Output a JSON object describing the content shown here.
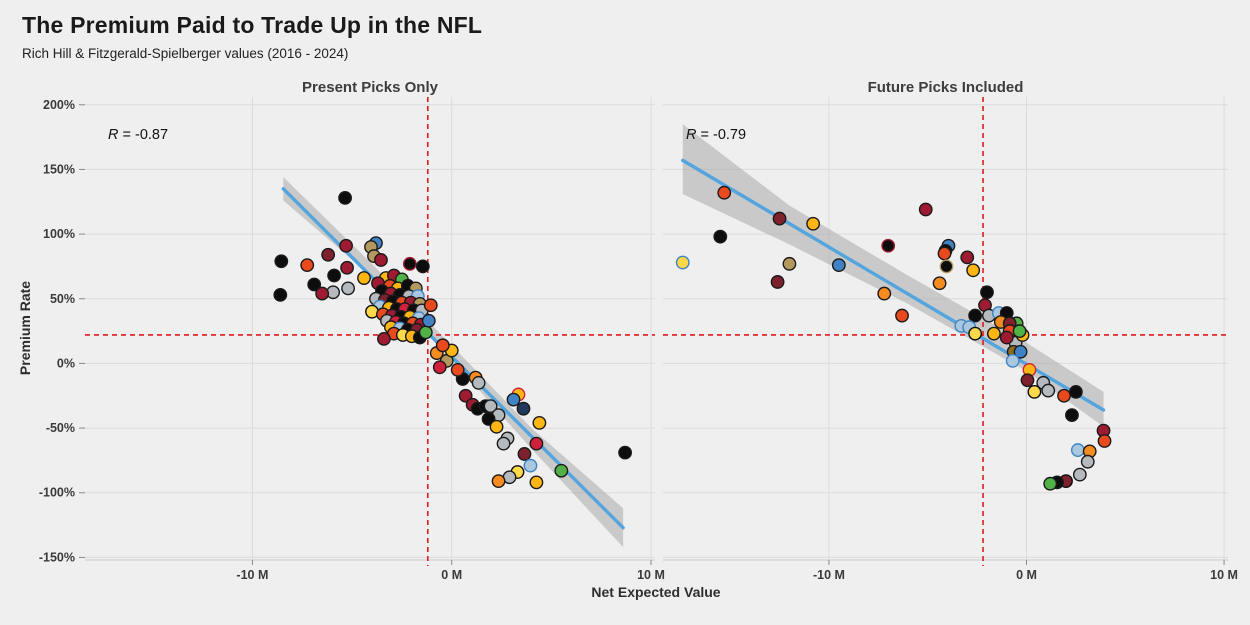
{
  "header": {
    "title": "The Premium Paid to Trade Up in the NFL",
    "subtitle": "Rich Hill & Fitzgerald-Spielberger values (2016 - 2024)"
  },
  "colors": {
    "background": "#efeff0",
    "grid": "#dbdbdc",
    "axis_line": "#c9c9ca",
    "axis_tick": "#8a8a8a",
    "tick_text": "#3a3a3a",
    "title_text": "#1a1a1a",
    "trend": "#54a4de",
    "ci": "#a3a3a3",
    "refline": "#e3191e",
    "point_stroke": "#1a1a1a",
    "palette": {
      "bk": "#0d0d0d",
      "cr": "#9e1b32",
      "rd": "#d0213a",
      "dr": "#7e212e",
      "or": "#e8491d",
      "oa": "#f68b20",
      "gd": "#ffb612",
      "yl": "#ffd94a",
      "gy": "#b5babf",
      "lb": "#a9c8de",
      "bl": "#3f83c4",
      "tn": "#b3995d",
      "ol": "#8c6d1f",
      "gn": "#50b146",
      "nv": "#23395b"
    }
  },
  "chart_data": {
    "type": "scatter",
    "title": "The Premium Paid to Trade Up in the NFL",
    "subtitle": "Rich Hill & Fitzgerald-Spielberger values (2016 - 2024)",
    "xlabel": "Net Expected Value",
    "ylabel": "Premium Rate",
    "xlim": [
      -18.4,
      10.2
    ],
    "ylim": [
      -152,
      206
    ],
    "x_unit": "M",
    "y_unit": "%",
    "grid": true,
    "legend": null,
    "x_ticks": [
      {
        "v": -10,
        "label": "-10 M"
      },
      {
        "v": 0,
        "label": "0 M"
      },
      {
        "v": 10,
        "label": "10 M"
      }
    ],
    "y_ticks": [
      {
        "v": 200,
        "label": "200%"
      },
      {
        "v": 150,
        "label": "150%"
      },
      {
        "v": 100,
        "label": "100%"
      },
      {
        "v": 50,
        "label": "50%"
      },
      {
        "v": 0,
        "label": "0%"
      },
      {
        "v": -50,
        "label": "-50%"
      },
      {
        "v": -100,
        "label": "-100%"
      },
      {
        "v": -150,
        "label": "-150%"
      }
    ],
    "ref_hline": 22,
    "panels": [
      {
        "title": "Present Picks Only",
        "r_var": "R",
        "r_value": " = -0.87",
        "ref_vline": -1.2,
        "trend": [
          [
            -8.45,
            135
          ],
          [
            8.6,
            -127
          ]
        ],
        "ci_upper": [
          [
            -8.45,
            144
          ],
          [
            -4,
            77
          ],
          [
            0,
            14
          ],
          [
            4,
            -50
          ],
          [
            8.6,
            -112
          ]
        ],
        "ci_lower": [
          [
            -8.45,
            126
          ],
          [
            -4,
            67
          ],
          [
            0,
            3
          ],
          [
            4,
            -66
          ],
          [
            8.6,
            -142
          ]
        ],
        "points": [
          [
            -5.35,
            128,
            "bk"
          ],
          [
            -8.55,
            79,
            "bk"
          ],
          [
            -7.25,
            76,
            "or"
          ],
          [
            -6.2,
            84,
            "dr"
          ],
          [
            -5.25,
            74,
            "cr"
          ],
          [
            -5.9,
            68,
            "bk"
          ],
          [
            -4.4,
            66,
            "gd"
          ],
          [
            -6.9,
            61,
            "bk"
          ],
          [
            -5.2,
            58,
            "gy"
          ],
          [
            -5.95,
            55,
            "gy"
          ],
          [
            -6.5,
            54,
            "cr"
          ],
          [
            -8.6,
            53,
            "bk"
          ],
          [
            -3.8,
            93,
            "bl"
          ],
          [
            -5.3,
            91,
            "cr"
          ],
          [
            -4.05,
            90,
            "tn"
          ],
          [
            -3.9,
            83,
            "tn"
          ],
          [
            -3.55,
            80,
            "cr"
          ],
          [
            -2.1,
            77,
            "bk",
            "cr"
          ],
          [
            -1.45,
            75,
            "bk"
          ],
          [
            -3.3,
            66,
            "gd"
          ],
          [
            -2.9,
            68,
            "cr"
          ],
          [
            -2.5,
            65,
            "gn"
          ],
          [
            -3.7,
            62,
            "cr"
          ],
          [
            -3.1,
            60,
            "or"
          ],
          [
            -2.7,
            58,
            "gd"
          ],
          [
            -2.2,
            60,
            "bk"
          ],
          [
            -1.8,
            58,
            "tn"
          ],
          [
            -3.5,
            56,
            "bk"
          ],
          [
            -3.05,
            54,
            "cr"
          ],
          [
            -2.6,
            53,
            "bk"
          ],
          [
            -2.15,
            52,
            "gy"
          ],
          [
            -1.7,
            52,
            "lb",
            "bl"
          ],
          [
            -3.8,
            50,
            "gy"
          ],
          [
            -3.35,
            49,
            "dr"
          ],
          [
            -2.95,
            48,
            "bk"
          ],
          [
            -2.5,
            47,
            "or"
          ],
          [
            -2.05,
            47,
            "cr"
          ],
          [
            -1.6,
            46,
            "tn"
          ],
          [
            -3.6,
            44,
            "lb",
            "bl"
          ],
          [
            -3.15,
            43,
            "gd"
          ],
          [
            -2.75,
            42,
            "bk"
          ],
          [
            -2.35,
            42,
            "rd"
          ],
          [
            -1.9,
            41,
            "bk"
          ],
          [
            -1.5,
            41,
            "gy"
          ],
          [
            -4.0,
            40,
            "yl",
            "bk"
          ],
          [
            -3.45,
            38,
            "or"
          ],
          [
            -3.0,
            37,
            "cr"
          ],
          [
            -2.55,
            36,
            "bk"
          ],
          [
            -2.1,
            36,
            "gd"
          ],
          [
            -1.65,
            35,
            "lb",
            "bl"
          ],
          [
            -3.25,
            33,
            "gy"
          ],
          [
            -2.8,
            32,
            "rd"
          ],
          [
            -2.4,
            31,
            "bk"
          ],
          [
            -1.95,
            31,
            "or"
          ],
          [
            -1.55,
            30,
            "cr"
          ],
          [
            -3.05,
            28,
            "gd"
          ],
          [
            -2.6,
            27,
            "lb",
            "bl"
          ],
          [
            -2.2,
            26,
            "bk"
          ],
          [
            -1.75,
            26,
            "dr"
          ],
          [
            -2.9,
            23,
            "or"
          ],
          [
            -2.45,
            22,
            "yl",
            "bk"
          ],
          [
            -2.0,
            21,
            "gd"
          ],
          [
            -1.6,
            20,
            "bk"
          ],
          [
            -3.4,
            19,
            "cr"
          ],
          [
            -1.3,
            24,
            "gn"
          ],
          [
            -1.15,
            33,
            "bl"
          ],
          [
            -1.05,
            45,
            "or"
          ],
          [
            -0.75,
            8,
            "oa"
          ],
          [
            -0.25,
            2,
            "tn"
          ],
          [
            0.55,
            -12,
            "bk"
          ],
          [
            1.2,
            -11,
            "oa"
          ],
          [
            1.35,
            -15,
            "gy"
          ],
          [
            0.7,
            -25,
            "cr"
          ],
          [
            1.05,
            -32,
            "cr"
          ],
          [
            1.3,
            -35,
            "bk"
          ],
          [
            1.7,
            -33,
            "bk"
          ],
          [
            1.95,
            -33,
            "gy"
          ],
          [
            2.35,
            -40,
            "gy"
          ],
          [
            1.85,
            -43,
            "bk"
          ],
          [
            2.25,
            -49,
            "gd"
          ],
          [
            0.3,
            -5,
            "or"
          ],
          [
            0.0,
            10,
            "gd"
          ],
          [
            -0.45,
            14,
            "or"
          ],
          [
            -0.6,
            -3,
            "rd"
          ],
          [
            3.35,
            -24,
            "gd",
            "rd"
          ],
          [
            3.6,
            -35,
            "nv"
          ],
          [
            4.4,
            -46,
            "gd"
          ],
          [
            2.8,
            -58,
            "gy"
          ],
          [
            2.6,
            -62,
            "gy"
          ],
          [
            4.25,
            -62,
            "rd"
          ],
          [
            3.65,
            -70,
            "dr"
          ],
          [
            3.95,
            -79,
            "lb",
            "bl"
          ],
          [
            3.3,
            -84,
            "yl",
            "bk"
          ],
          [
            2.9,
            -88,
            "gy"
          ],
          [
            2.35,
            -91,
            "oa"
          ],
          [
            4.25,
            -92,
            "gd"
          ],
          [
            5.5,
            -83,
            "gn"
          ],
          [
            8.7,
            -69,
            "bk"
          ],
          [
            3.1,
            -28,
            "bl"
          ]
        ]
      },
      {
        "title": "Future Picks Included",
        "r_var": "R",
        "r_value": " = -0.79",
        "ref_vline": -2.2,
        "trend": [
          [
            -17.4,
            157
          ],
          [
            3.9,
            -36
          ]
        ],
        "ci_upper": [
          [
            -17.4,
            185
          ],
          [
            -12,
            122
          ],
          [
            -6,
            68
          ],
          [
            0,
            16
          ],
          [
            3.9,
            -22
          ]
        ],
        "ci_lower": [
          [
            -17.4,
            131
          ],
          [
            -12,
            92
          ],
          [
            -6,
            46
          ],
          [
            0,
            -6
          ],
          [
            3.9,
            -49
          ]
        ],
        "points": [
          [
            -15.3,
            132,
            "or"
          ],
          [
            -12.5,
            112,
            "dr"
          ],
          [
            -10.8,
            108,
            "gd"
          ],
          [
            -15.5,
            98,
            "bk"
          ],
          [
            -5.1,
            119,
            "cr"
          ],
          [
            -17.4,
            78,
            "yl",
            "bl"
          ],
          [
            -12.0,
            77,
            "tn"
          ],
          [
            -9.5,
            76,
            "bl"
          ],
          [
            -12.6,
            63,
            "dr"
          ],
          [
            -7.0,
            91,
            "bk",
            "cr"
          ],
          [
            -7.2,
            54,
            "oa"
          ],
          [
            -6.3,
            37,
            "or"
          ],
          [
            -3.95,
            91,
            "bl"
          ],
          [
            -4.1,
            87,
            "bk"
          ],
          [
            -4.15,
            85,
            "or"
          ],
          [
            -3.0,
            82,
            "cr"
          ],
          [
            -4.05,
            75,
            "bk",
            "tn"
          ],
          [
            -2.7,
            72,
            "gd"
          ],
          [
            -4.4,
            62,
            "oa"
          ],
          [
            -2.0,
            55,
            "bk"
          ],
          [
            -2.1,
            45,
            "cr"
          ],
          [
            -2.6,
            37,
            "bk"
          ],
          [
            -1.9,
            37,
            "gy"
          ],
          [
            -1.4,
            39,
            "lb",
            "bl"
          ],
          [
            -1.0,
            39,
            "bk"
          ],
          [
            -1.3,
            32,
            "oa"
          ],
          [
            -0.5,
            31,
            "gn"
          ],
          [
            -0.85,
            31,
            "dr"
          ],
          [
            -3.3,
            29,
            "lb",
            "bl"
          ],
          [
            -2.9,
            28,
            "lb",
            "bl"
          ],
          [
            -2.6,
            23,
            "yl",
            "bk"
          ],
          [
            -1.65,
            23,
            "gd"
          ],
          [
            -0.85,
            25,
            "or"
          ],
          [
            -0.55,
            16,
            "gy"
          ],
          [
            -0.65,
            9,
            "ol"
          ],
          [
            -0.3,
            9,
            "bl"
          ],
          [
            -0.7,
            2,
            "lb",
            "bl"
          ],
          [
            0.15,
            -5,
            "gd",
            "rd"
          ],
          [
            0.05,
            -13,
            "dr"
          ],
          [
            0.85,
            -15,
            "gy"
          ],
          [
            1.1,
            -21,
            "gy"
          ],
          [
            0.4,
            -22,
            "yl",
            "bk"
          ],
          [
            1.9,
            -25,
            "or"
          ],
          [
            2.5,
            -22,
            "bk"
          ],
          [
            2.3,
            -40,
            "bk"
          ],
          [
            3.9,
            -52,
            "cr"
          ],
          [
            3.95,
            -60,
            "or"
          ],
          [
            2.6,
            -67,
            "lb",
            "bl"
          ],
          [
            3.2,
            -68,
            "oa"
          ],
          [
            3.1,
            -76,
            "gy"
          ],
          [
            2.7,
            -86,
            "gy"
          ],
          [
            2.0,
            -91,
            "dr",
            "bk"
          ],
          [
            1.55,
            -92,
            "bk"
          ],
          [
            1.2,
            -93,
            "gn"
          ],
          [
            -0.2,
            22,
            "gd"
          ],
          [
            -1.0,
            20,
            "cr"
          ],
          [
            -0.35,
            25,
            "gn"
          ]
        ]
      }
    ]
  }
}
